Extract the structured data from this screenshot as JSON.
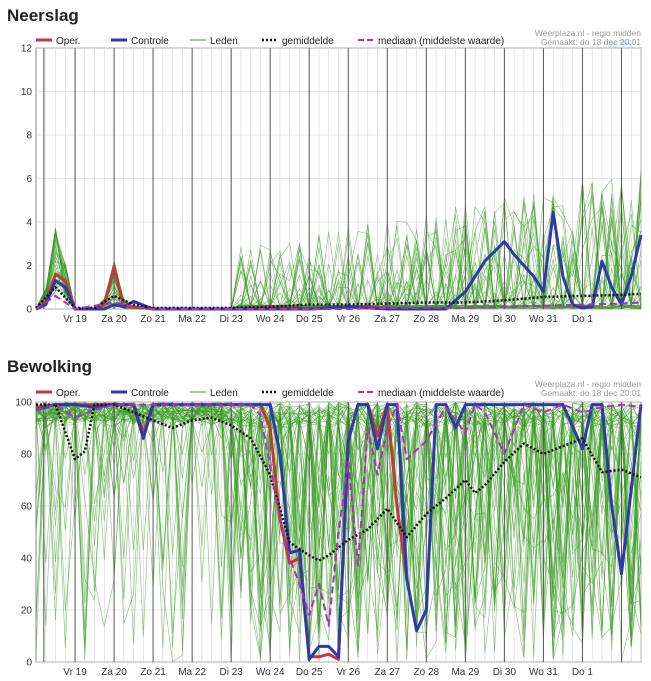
{
  "charts": [
    {
      "key": "neerslag",
      "title": "Neerslag",
      "credit_line1": "Weerplaza.nl - regio midden",
      "credit_line2": "Gemaakt: do 18 dec 20:01",
      "legend": [
        "Oper.",
        "Controle",
        "Leden",
        "gemiddelde",
        "mediaan (middelste waarde)"
      ]
    },
    {
      "key": "bewolking",
      "title": "Bewolking",
      "credit_line1": "Weerplaza.nl - regio midden",
      "credit_line2": "Gemaakt: do 18 dec 20:01",
      "legend": [
        "Oper.",
        "Controle",
        "Leden",
        "gemiddelde",
        "mediaan (middelste waarde)"
      ]
    }
  ],
  "colors": {
    "oper": "#c0393b",
    "controle": "#2e3aa8",
    "leden": "#3a9a24",
    "gemiddelde": "#111111",
    "mediaan": "#b22cc2",
    "grid": "#d6d6d6",
    "day_line": "#555555"
  },
  "chart_data": [
    {
      "type": "line",
      "title": "Neerslag",
      "ylim": [
        0,
        12
      ],
      "yticks": [
        0,
        2,
        4,
        6,
        8,
        10,
        12
      ],
      "x_range_days": [
        0,
        15.5
      ],
      "day_labels": [
        "Vr 19",
        "Za 20",
        "Zo 21",
        "Ma 22",
        "Di 23",
        "Wo 24",
        "Do 25",
        "Vr 26",
        "Za 27",
        "Zo 28",
        "Ma 29",
        "Di 30",
        "Wo 31",
        "Do 1"
      ],
      "series": [
        {
          "name": "Oper.",
          "x": [
            0,
            0.25,
            0.5,
            0.75,
            1,
            1.25,
            1.5,
            1.75,
            2,
            2.25,
            2.5,
            2.75,
            3,
            4,
            5,
            6,
            7,
            8,
            8.5,
            9,
            9.5
          ],
          "y": [
            0,
            0.3,
            1.6,
            1.3,
            0,
            0,
            0,
            0.2,
            1.95,
            0.1,
            0.1,
            0.05,
            0,
            0,
            0,
            0.1,
            0,
            0.1,
            0.1,
            0.05,
            0
          ]
        },
        {
          "name": "Controle",
          "x": [
            0,
            0.25,
            0.5,
            0.75,
            1,
            1.5,
            1.75,
            2,
            2.25,
            2.5,
            3,
            4,
            5,
            6,
            7,
            8,
            9,
            10,
            10.5,
            11,
            11.5,
            12,
            12.25,
            12.5,
            12.75,
            13,
            13.25,
            13.5,
            13.75,
            14,
            14.25,
            14.5,
            14.75,
            15,
            15.25,
            15.5
          ],
          "y": [
            0,
            0.2,
            1.3,
            1.0,
            0,
            0,
            0,
            0.2,
            0.1,
            0.35,
            0,
            0,
            0,
            0,
            0,
            0.1,
            0,
            0,
            0,
            0.8,
            2.2,
            3.1,
            2.5,
            2.0,
            1.5,
            0.8,
            4.45,
            1.5,
            0.2,
            0.05,
            0.1,
            2.2,
            1.0,
            0.2,
            1.5,
            3.4
          ]
        },
        {
          "name": "gemiddelde",
          "x": [
            0,
            0.5,
            1,
            1.5,
            2,
            2.5,
            3,
            4,
            5,
            6,
            7,
            8,
            9,
            10,
            11,
            12,
            13,
            14,
            15,
            15.5
          ],
          "y": [
            0.05,
            1.0,
            0.05,
            0.05,
            0.6,
            0.2,
            0.05,
            0.05,
            0.05,
            0.1,
            0.2,
            0.2,
            0.25,
            0.3,
            0.3,
            0.4,
            0.55,
            0.6,
            0.65,
            0.7
          ]
        },
        {
          "name": "mediaan (middelste waarde)",
          "x": [
            0,
            0.5,
            1,
            2,
            2.5,
            3,
            4,
            5,
            6,
            7,
            8,
            9,
            10,
            11,
            12,
            13,
            14,
            15,
            15.5
          ],
          "y": [
            0,
            0.6,
            0,
            0.3,
            0.1,
            0,
            0,
            0,
            0,
            0,
            0,
            0.05,
            0.05,
            0.05,
            0.1,
            0.15,
            0.2,
            0.25,
            0.3
          ]
        }
      ]
    },
    {
      "type": "line",
      "title": "Bewolking",
      "ylim": [
        0,
        100
      ],
      "yticks": [
        0,
        20,
        40,
        60,
        80,
        100
      ],
      "x_range_days": [
        0,
        15.5
      ],
      "day_labels": [
        "Vr 19",
        "Za 20",
        "Zo 21",
        "Ma 22",
        "Di 23",
        "Wo 24",
        "Do 25",
        "Vr 26",
        "Za 27",
        "Zo 28",
        "Ma 29",
        "Di 30",
        "Wo 31",
        "Do 1"
      ],
      "series": [
        {
          "name": "Oper.",
          "x": [
            0,
            0.5,
            1,
            1.5,
            2,
            2.5,
            2.75,
            3,
            4,
            5,
            5.75,
            6,
            6.25,
            6.5,
            6.75,
            7,
            7.25,
            7.5,
            7.75,
            8,
            8.25,
            8.5,
            8.75,
            9,
            9.25,
            9.5
          ],
          "y": [
            98,
            99,
            99,
            99,
            99,
            99,
            88,
            99,
            99,
            99,
            99,
            90,
            55,
            38,
            40,
            2,
            2,
            3,
            1,
            85,
            99,
            99,
            87,
            99,
            60,
            32
          ]
        },
        {
          "name": "Controle",
          "x": [
            0,
            0.5,
            1,
            1.5,
            2,
            2.5,
            2.75,
            3,
            4,
            5,
            6,
            6.25,
            6.5,
            6.75,
            7,
            7.25,
            7.5,
            7.75,
            8,
            8.25,
            8.5,
            8.75,
            9,
            9.25,
            9.5,
            9.75,
            10,
            10.25,
            10.5,
            10.75,
            11,
            11.25,
            11.5,
            12,
            12.5,
            13,
            13.5,
            14,
            14.25,
            14.5,
            14.75,
            15,
            15.5
          ],
          "y": [
            97,
            99,
            99,
            98,
            99,
            99,
            86,
            99,
            99,
            99,
            99,
            80,
            42,
            43,
            1,
            6,
            6,
            2,
            85,
            99,
            99,
            82,
            99,
            99,
            32,
            12,
            20,
            99,
            99,
            90,
            99,
            99,
            99,
            99,
            99,
            99,
            99,
            82,
            99,
            99,
            60,
            34,
            99
          ]
        },
        {
          "name": "gemiddelde",
          "x": [
            0,
            0.5,
            1,
            1.25,
            1.5,
            2,
            2.5,
            3,
            3.5,
            4,
            4.5,
            5,
            5.5,
            6,
            6.5,
            7,
            7.25,
            7.5,
            8,
            8.5,
            9,
            9.5,
            10,
            10.5,
            11,
            11.25,
            11.5,
            12,
            12.5,
            13,
            13.5,
            14,
            14.5,
            15,
            15.5
          ],
          "y": [
            99,
            99,
            78,
            81,
            99,
            99,
            96,
            93,
            90,
            93,
            94,
            91,
            86,
            72,
            46,
            41,
            39,
            41,
            47,
            51,
            59,
            48,
            57,
            63,
            70,
            65,
            68,
            77,
            84,
            80,
            83,
            86,
            73,
            74,
            71
          ]
        },
        {
          "name": "mediaan (middelste waarde)",
          "x": [
            0,
            0.5,
            1,
            1.5,
            2,
            2.5,
            3,
            4,
            5,
            5.5,
            5.75,
            6,
            6.25,
            6.5,
            6.75,
            7,
            7.25,
            7.5,
            7.75,
            8,
            8.25,
            8.5,
            8.75,
            9,
            9.25,
            9.5,
            10,
            10.5,
            11,
            11.25,
            11.5,
            12,
            12.5,
            13,
            13.5,
            14,
            14.5,
            15,
            15.5
          ],
          "y": [
            97,
            99,
            94,
            97,
            99,
            99,
            99,
            99,
            99,
            99,
            95,
            75,
            55,
            40,
            30,
            18,
            30,
            14,
            50,
            77,
            37,
            90,
            72,
            90,
            99,
            78,
            85,
            98,
            88,
            99,
            96,
            80,
            99,
            96,
            99,
            96,
            98,
            99,
            98
          ]
        }
      ]
    }
  ]
}
